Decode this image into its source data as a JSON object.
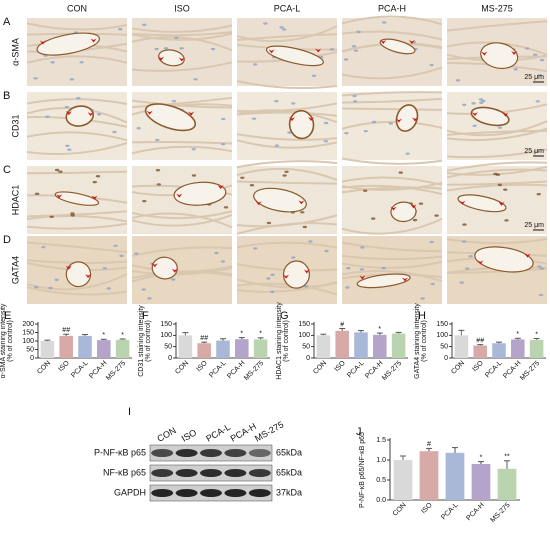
{
  "micrographs": {
    "columns": [
      "CON",
      "ISO",
      "PCA-L",
      "PCA-H",
      "MS-275"
    ],
    "rows": [
      {
        "panel": "A",
        "stain": "α-SMA",
        "scale_bar": "25 μm"
      },
      {
        "panel": "B",
        "stain": "CD31",
        "scale_bar": "25 μm"
      },
      {
        "panel": "C",
        "stain": "HDAC1",
        "scale_bar": "25 μm"
      },
      {
        "panel": "D",
        "stain": "GATA4"
      }
    ]
  },
  "chart_data": [
    {
      "type": "bar",
      "panel": "E",
      "ylabel": [
        "α-SMA staining intensity",
        "(% of control)"
      ],
      "categories": [
        "CON",
        "ISO",
        "PCA-L",
        "PCA-H",
        "MS-275"
      ],
      "values": [
        100,
        130,
        130,
        105,
        107
      ],
      "errors": [
        5,
        10,
        8,
        5,
        5
      ],
      "annotations": [
        null,
        "##",
        null,
        "*",
        "*"
      ],
      "colors": [
        "#d9d9d9",
        "#d8aaa7",
        "#a9b7d8",
        "#b4a4c9",
        "#bad4af"
      ],
      "ylim": [
        0,
        200
      ],
      "yticks": [
        0,
        50,
        100,
        150,
        200
      ]
    },
    {
      "type": "bar",
      "panel": "F",
      "ylabel": [
        "CD31 staining intensity",
        "(% of control)"
      ],
      "categories": [
        "CON",
        "ISO",
        "PCA-L",
        "PCA-H",
        "MS-275"
      ],
      "values": [
        100,
        65,
        77,
        83,
        82
      ],
      "errors": [
        12,
        5,
        8,
        7,
        7
      ],
      "annotations": [
        null,
        "##",
        null,
        "*",
        "*"
      ],
      "colors": [
        "#d9d9d9",
        "#d8aaa7",
        "#a9b7d8",
        "#b4a4c9",
        "#bad4af"
      ],
      "ylim": [
        0,
        150
      ],
      "yticks": [
        0,
        50,
        100,
        150
      ]
    },
    {
      "type": "bar",
      "panel": "G",
      "ylabel": [
        "HDAC1 staining intensity",
        "(% of control)"
      ],
      "categories": [
        "CON",
        "ISO",
        "PCA-L",
        "PCA-H",
        "MS-275"
      ],
      "values": [
        100,
        120,
        113,
        102,
        108
      ],
      "errors": [
        5,
        10,
        8,
        8,
        5
      ],
      "annotations": [
        null,
        "#",
        null,
        "*",
        null
      ],
      "colors": [
        "#d9d9d9",
        "#d8aaa7",
        "#a9b7d8",
        "#b4a4c9",
        "#bad4af"
      ],
      "ylim": [
        0,
        150
      ],
      "yticks": [
        0,
        50,
        100,
        150
      ]
    },
    {
      "type": "bar",
      "panel": "H",
      "ylabel": [
        "GATA4 staining intensity",
        "(% of control)"
      ],
      "categories": [
        "CON",
        "ISO",
        "PCA-L",
        "PCA-H",
        "MS-275"
      ],
      "values": [
        100,
        55,
        65,
        82,
        80
      ],
      "errors": [
        22,
        4,
        5,
        5,
        6
      ],
      "annotations": [
        null,
        "##",
        null,
        "*",
        "*"
      ],
      "colors": [
        "#d9d9d9",
        "#d8aaa7",
        "#a9b7d8",
        "#b4a4c9",
        "#bad4af"
      ],
      "ylim": [
        0,
        150
      ],
      "yticks": [
        0,
        50,
        100,
        150
      ]
    },
    {
      "type": "bar",
      "panel": "J",
      "ylabel": [
        "P-NF-κB p65/NF-κB p65"
      ],
      "categories": [
        "CON",
        "ISO",
        "PCA-L",
        "PCA-H",
        "MS-275"
      ],
      "values": [
        1.0,
        1.22,
        1.18,
        0.9,
        0.78
      ],
      "errors": [
        0.1,
        0.07,
        0.13,
        0.06,
        0.2
      ],
      "annotations": [
        null,
        "#",
        null,
        "*",
        "**"
      ],
      "colors": [
        "#d9d9d9",
        "#d8aaa7",
        "#a9b7d8",
        "#b4a4c9",
        "#bad4af"
      ],
      "ylim": [
        0,
        1.5
      ],
      "yticks": [
        {
          "value": 0,
          "label": "0.0"
        },
        0.5,
        {
          "value": 1,
          "label": "1.0"
        },
        1.5
      ]
    }
  ],
  "western_blot": {
    "panel": "I",
    "lanes": [
      "CON",
      "ISO",
      "PCA-L",
      "PCA-H",
      "MS-275"
    ],
    "bands": [
      {
        "label": "P-NF-κB p65",
        "size": "65kDa"
      },
      {
        "label": "NF-κB p65",
        "size": "65kDa"
      },
      {
        "label": "GAPDH",
        "size": "37kDa"
      }
    ]
  }
}
